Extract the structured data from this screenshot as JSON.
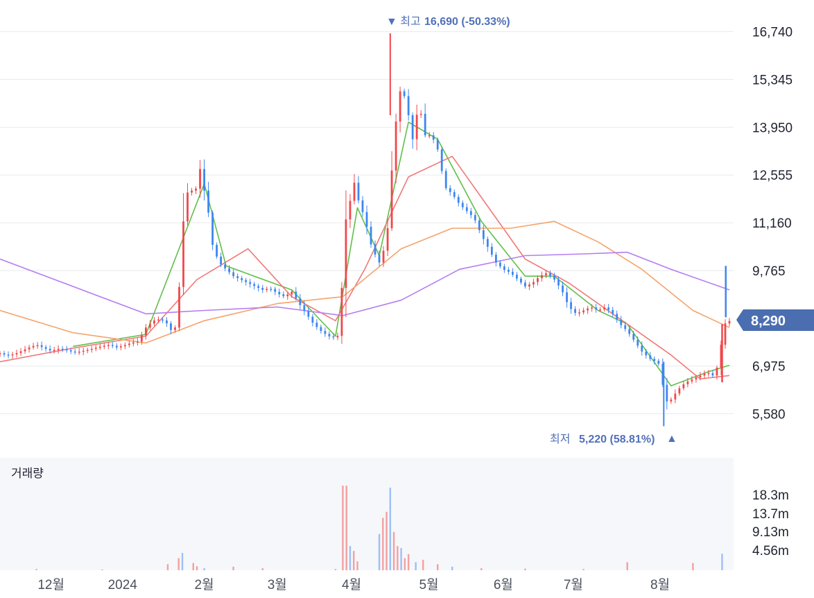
{
  "chart_data": {
    "type": "candlestick",
    "y_ticks": [
      "16,740",
      "15,345",
      "13,950",
      "12,555",
      "11,160",
      "9,765",
      "6,975",
      "5,580"
    ],
    "y_range": [
      4700,
      17300
    ],
    "current_price": {
      "label": "8,290",
      "value": 8290
    },
    "high_marker": {
      "prefix": "▼ 최고",
      "value_text": "16,690 (-50.33%)",
      "value": 16690
    },
    "low_marker": {
      "prefix": "최저",
      "value_text": "5,220 (58.81%)",
      "suffix": "▲",
      "value": 5220
    },
    "x_ticks": [
      "12월",
      "2024",
      "2월",
      "3월",
      "4월",
      "5월",
      "6월",
      "7월",
      "8월"
    ],
    "close_path": [
      [
        0,
        7350
      ],
      [
        0.01,
        7280
      ],
      [
        0.02,
        7330
      ],
      [
        0.03,
        7420
      ],
      [
        0.04,
        7520
      ],
      [
        0.05,
        7600
      ],
      [
        0.06,
        7500
      ],
      [
        0.07,
        7420
      ],
      [
        0.08,
        7480
      ],
      [
        0.09,
        7450
      ],
      [
        0.1,
        7380
      ],
      [
        0.11,
        7400
      ],
      [
        0.12,
        7450
      ],
      [
        0.13,
        7500
      ],
      [
        0.14,
        7560
      ],
      [
        0.15,
        7600
      ],
      [
        0.16,
        7520
      ],
      [
        0.17,
        7580
      ],
      [
        0.18,
        7650
      ],
      [
        0.19,
        7700
      ],
      [
        0.2,
        8100
      ],
      [
        0.21,
        8300
      ],
      [
        0.22,
        8350
      ],
      [
        0.23,
        8200
      ],
      [
        0.235,
        8000
      ],
      [
        0.24,
        8100
      ],
      [
        0.245,
        9000
      ],
      [
        0.25,
        11000
      ],
      [
        0.255,
        11700
      ],
      [
        0.26,
        12500
      ],
      [
        0.265,
        11800
      ],
      [
        0.27,
        12300
      ],
      [
        0.275,
        12800
      ],
      [
        0.28,
        12100
      ],
      [
        0.285,
        11600
      ],
      [
        0.29,
        10600
      ],
      [
        0.3,
        10000
      ],
      [
        0.31,
        9800
      ],
      [
        0.32,
        9600
      ],
      [
        0.33,
        9500
      ],
      [
        0.34,
        9400
      ],
      [
        0.35,
        9300
      ],
      [
        0.36,
        9200
      ],
      [
        0.37,
        9250
      ],
      [
        0.38,
        9100
      ],
      [
        0.39,
        9000
      ],
      [
        0.4,
        9150
      ],
      [
        0.41,
        8800
      ],
      [
        0.42,
        8500
      ],
      [
        0.43,
        8200
      ],
      [
        0.44,
        8000
      ],
      [
        0.45,
        7850
      ],
      [
        0.46,
        7800
      ],
      [
        0.465,
        7900
      ],
      [
        0.47,
        9800
      ],
      [
        0.475,
        11500
      ],
      [
        0.48,
        11800
      ],
      [
        0.485,
        12400
      ],
      [
        0.49,
        11900
      ],
      [
        0.5,
        11300
      ],
      [
        0.51,
        10400
      ],
      [
        0.52,
        10000
      ],
      [
        0.53,
        10600
      ],
      [
        0.535,
        12000
      ],
      [
        0.54,
        13600
      ],
      [
        0.545,
        14500
      ],
      [
        0.55,
        15200
      ],
      [
        0.555,
        14800
      ],
      [
        0.56,
        14300
      ],
      [
        0.565,
        13500
      ],
      [
        0.57,
        14200
      ],
      [
        0.575,
        14600
      ],
      [
        0.58,
        14000
      ],
      [
        0.585,
        13500
      ],
      [
        0.59,
        13800
      ],
      [
        0.6,
        13300
      ],
      [
        0.61,
        12200
      ],
      [
        0.62,
        12000
      ],
      [
        0.63,
        11700
      ],
      [
        0.64,
        11500
      ],
      [
        0.65,
        11300
      ],
      [
        0.66,
        10800
      ],
      [
        0.67,
        10400
      ],
      [
        0.68,
        10000
      ],
      [
        0.69,
        9800
      ],
      [
        0.7,
        9700
      ],
      [
        0.71,
        9500
      ],
      [
        0.72,
        9300
      ],
      [
        0.73,
        9400
      ],
      [
        0.74,
        9600
      ],
      [
        0.75,
        9700
      ],
      [
        0.76,
        9500
      ],
      [
        0.77,
        9200
      ],
      [
        0.78,
        8700
      ],
      [
        0.79,
        8500
      ],
      [
        0.8,
        8600
      ],
      [
        0.81,
        8700
      ],
      [
        0.82,
        8600
      ],
      [
        0.83,
        8700
      ],
      [
        0.84,
        8500
      ],
      [
        0.85,
        8200
      ],
      [
        0.86,
        8000
      ],
      [
        0.87,
        7700
      ],
      [
        0.88,
        7400
      ],
      [
        0.89,
        7200
      ],
      [
        0.9,
        7100
      ],
      [
        0.905,
        7000
      ],
      [
        0.91,
        6200
      ],
      [
        0.915,
        5900
      ],
      [
        0.92,
        6000
      ],
      [
        0.93,
        6300
      ],
      [
        0.94,
        6500
      ],
      [
        0.95,
        6600
      ],
      [
        0.96,
        6700
      ],
      [
        0.97,
        6800
      ],
      [
        0.975,
        6700
      ],
      [
        0.98,
        6700
      ],
      [
        0.985,
        7100
      ],
      [
        0.99,
        7800
      ],
      [
        0.995,
        8290
      ]
    ],
    "moving_averages": [
      {
        "color": "#5fbf4a",
        "points": [
          [
            0.1,
            7550
          ],
          [
            0.2,
            7900
          ],
          [
            0.28,
            12300
          ],
          [
            0.31,
            9900
          ],
          [
            0.4,
            9200
          ],
          [
            0.46,
            7850
          ],
          [
            0.49,
            11600
          ],
          [
            0.52,
            10200
          ],
          [
            0.56,
            14100
          ],
          [
            0.6,
            13600
          ],
          [
            0.66,
            11200
          ],
          [
            0.72,
            9600
          ],
          [
            0.76,
            9600
          ],
          [
            0.82,
            8600
          ],
          [
            0.86,
            8200
          ],
          [
            0.92,
            6400
          ],
          [
            0.97,
            6800
          ],
          [
            1.0,
            7000
          ]
        ]
      },
      {
        "color": "#f07878",
        "points": [
          [
            0.0,
            7100
          ],
          [
            0.1,
            7500
          ],
          [
            0.2,
            7850
          ],
          [
            0.27,
            9500
          ],
          [
            0.34,
            10400
          ],
          [
            0.4,
            9000
          ],
          [
            0.46,
            8300
          ],
          [
            0.5,
            9800
          ],
          [
            0.56,
            12500
          ],
          [
            0.62,
            13100
          ],
          [
            0.67,
            11600
          ],
          [
            0.72,
            10100
          ],
          [
            0.78,
            9400
          ],
          [
            0.86,
            8200
          ],
          [
            0.92,
            7300
          ],
          [
            0.96,
            6600
          ],
          [
            1.0,
            6700
          ]
        ]
      },
      {
        "color": "#f5a36a",
        "points": [
          [
            0.0,
            8600
          ],
          [
            0.1,
            7950
          ],
          [
            0.2,
            7650
          ],
          [
            0.28,
            8300
          ],
          [
            0.38,
            8800
          ],
          [
            0.47,
            9000
          ],
          [
            0.55,
            10400
          ],
          [
            0.62,
            11000
          ],
          [
            0.7,
            11000
          ],
          [
            0.76,
            11200
          ],
          [
            0.82,
            10600
          ],
          [
            0.88,
            9800
          ],
          [
            0.95,
            8600
          ],
          [
            1.0,
            8100
          ]
        ]
      },
      {
        "color": "#b57cf2",
        "points": [
          [
            0.0,
            10100
          ],
          [
            0.1,
            9300
          ],
          [
            0.2,
            8500
          ],
          [
            0.28,
            8600
          ],
          [
            0.38,
            8700
          ],
          [
            0.47,
            8450
          ],
          [
            0.55,
            8900
          ],
          [
            0.63,
            9800
          ],
          [
            0.72,
            10200
          ],
          [
            0.8,
            10250
          ],
          [
            0.86,
            10300
          ],
          [
            0.92,
            9800
          ],
          [
            1.0,
            9200
          ]
        ]
      }
    ],
    "volume": {
      "title": "거래량",
      "y_ticks": [
        "18.3m",
        "13.7m",
        "9.13m",
        "4.56m"
      ],
      "y_max": 21000000,
      "values": [
        [
          0.05,
          300000
        ],
        [
          0.14,
          200000
        ],
        [
          0.23,
          1500000
        ],
        [
          0.245,
          3000000
        ],
        [
          0.25,
          4300000
        ],
        [
          0.265,
          1800000
        ],
        [
          0.27,
          1000000
        ],
        [
          0.28,
          500000
        ],
        [
          0.32,
          900000
        ],
        [
          0.36,
          500000
        ],
        [
          0.46,
          300000
        ],
        [
          0.47,
          21000000
        ],
        [
          0.475,
          21000000
        ],
        [
          0.48,
          6000000
        ],
        [
          0.485,
          4800000
        ],
        [
          0.49,
          2200000
        ],
        [
          0.52,
          9000000
        ],
        [
          0.525,
          13000000
        ],
        [
          0.53,
          14500000
        ],
        [
          0.535,
          20500000
        ],
        [
          0.54,
          9500000
        ],
        [
          0.545,
          6000000
        ],
        [
          0.55,
          5500000
        ],
        [
          0.555,
          3000000
        ],
        [
          0.56,
          4000000
        ],
        [
          0.57,
          2000000
        ],
        [
          0.58,
          2600000
        ],
        [
          0.6,
          1500000
        ],
        [
          0.62,
          900000
        ],
        [
          0.66,
          500000
        ],
        [
          0.72,
          400000
        ],
        [
          0.8,
          300000
        ],
        [
          0.86,
          2000000
        ],
        [
          0.95,
          1800000
        ],
        [
          0.99,
          4100000
        ]
      ]
    }
  },
  "colors": {
    "up": "#f0474b",
    "down": "#3d86f0",
    "badge": "#4a6eb0",
    "annotation": "#5070b8",
    "grid": "#e8eaee",
    "volume_bg": "#f6f7fa"
  }
}
